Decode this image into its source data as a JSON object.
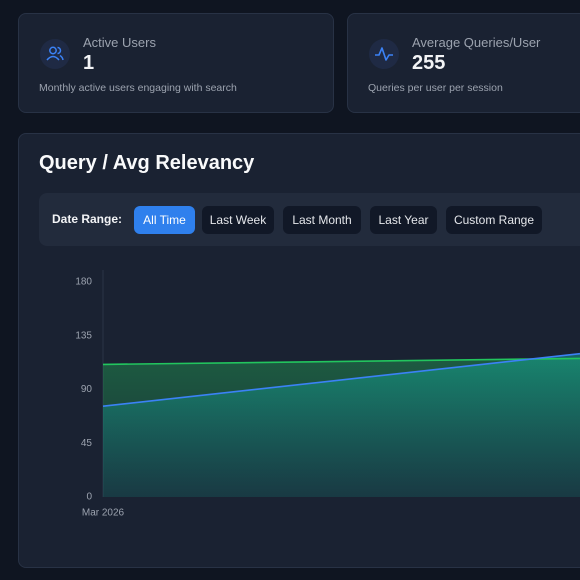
{
  "cards": [
    {
      "title": "Active Users",
      "value": 1,
      "description": "Monthly active users engaging with search"
    },
    {
      "title": "Average Queries/User",
      "value": 255,
      "description": "Queries per user per session"
    }
  ],
  "panel": {
    "title": "Query / Avg Relevancy",
    "date_range_label": "Date Range:",
    "buttons": [
      "All Time",
      "Last Week",
      "Last Month",
      "Last Year",
      "Custom Range"
    ],
    "active_button": 0
  },
  "chart_data": {
    "type": "area",
    "categories": [
      "Mar 2026",
      null
    ],
    "series": [
      {
        "color": "#22c55e",
        "values": [
          111,
          116
        ]
      },
      {
        "color": "#3b82f6",
        "values": [
          76,
          120
        ]
      }
    ],
    "ylim": [
      0,
      180
    ],
    "yticks": [
      0,
      45,
      90,
      135,
      180
    ],
    "grid": false
  }
}
